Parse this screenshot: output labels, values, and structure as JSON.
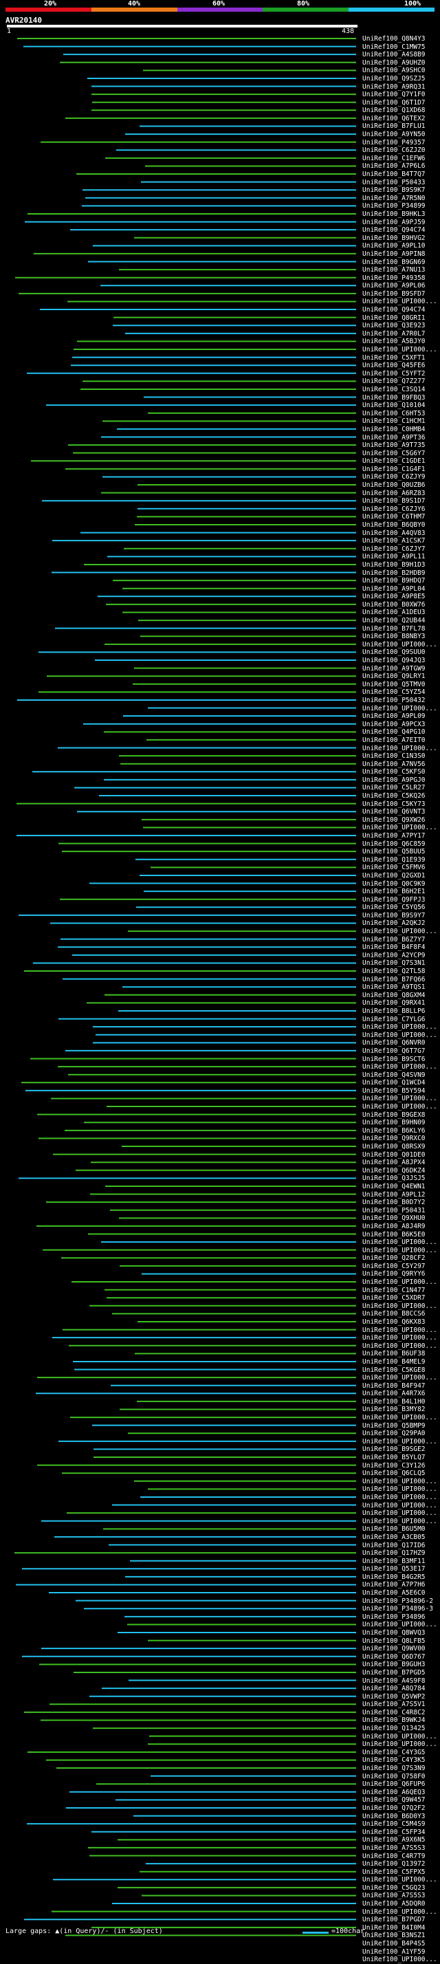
{
  "identity_scale": {
    "labels": [
      "20%",
      "40%",
      "60%",
      "80%",
      "100%"
    ],
    "colors": [
      "#e0101a",
      "#ee7a18",
      "#8a2bd0",
      "#1a9e24",
      "#22c0ee"
    ]
  },
  "query": {
    "name": "AVR20140",
    "start": "1",
    "end": "438",
    "length": 438
  },
  "colors": {
    "cyan": "#22c0ee",
    "green": "#3fbf22"
  },
  "hits": [
    "UniRef100_Q8N4Y3",
    "UniRef100_C1MW75",
    "UniRef100_A4S8B9",
    "UniRef100_A9UHZ0",
    "UniRef100_A9SHC0",
    "UniRef100_Q9SZJ5",
    "UniRef100_A9RQ31",
    "UniRef100_Q7Y1F0",
    "UniRef100_Q6T1D7",
    "UniRef100_Q1XD68",
    "UniRef100_Q6TEX2",
    "UniRef100_B7FLU1",
    "UniRef100_A9YN50",
    "UniRef100_P49357",
    "UniRef100_C6ZJZ0",
    "UniRef100_C1EFW6",
    "UniRef100_A7P6L6",
    "UniRef100_B4T7Q7",
    "UniRef100_P50433",
    "UniRef100_B9S9K7",
    "UniRef100_A7R5N0",
    "UniRef100_P34899",
    "UniRef100_B9HKL3",
    "UniRef100_A9PJ59",
    "UniRef100_Q94C74",
    "UniRef100_B9HVG2",
    "UniRef100_A9PL10",
    "UniRef100_A9PIN8",
    "UniRef100_B9GN69",
    "UniRef100_A7NU13",
    "UniRef100_P49358",
    "UniRef100_A9PL06",
    "UniRef100_B9SFD7",
    "UniRef100_UPI000...",
    "UniRef100_Q94C74",
    "UniRef100_Q8GRI1",
    "UniRef100_Q3E923",
    "UniRef100_A7R0L7",
    "UniRef100_A5BJY0",
    "UniRef100_UPI000...",
    "UniRef100_C5XFT1",
    "UniRef100_Q45FE6",
    "UniRef100_C5YFT2",
    "UniRef100_Q7Z277",
    "UniRef100_C3SQ14",
    "UniRef100_B9FBQ3",
    "UniRef100_Q10104",
    "UniRef100_C6HT53",
    "UniRef100_C1HCM1",
    "UniRef100_C0HMB4",
    "UniRef100_A9PT36",
    "UniRef100_A9T735",
    "UniRef100_C5G6Y7",
    "UniRef100_C1GDE1",
    "UniRef100_C1G4F1",
    "UniRef100_C6ZJY9",
    "UniRef100_Q0UZB6",
    "UniRef100_A6RZ83",
    "UniRef100_B9S1D7",
    "UniRef100_C6ZJY6",
    "UniRef100_C6THM7",
    "UniRef100_B6QBY0",
    "UniRef100_A4QV83",
    "UniRef100_A1CSK7",
    "UniRef100_C6ZJY7",
    "UniRef100_A9PL11",
    "UniRef100_B9H1D3",
    "UniRef100_B2HDB9",
    "UniRef100_B9HDQ7",
    "UniRef100_A9PL04",
    "UniRef100_A9P8E5",
    "UniRef100_B0XW76",
    "UniRef100_A1DEU3",
    "UniRef100_Q2UB44",
    "UniRef100_B7FL78",
    "UniRef100_B8NBY3",
    "UniRef100_UPI000...",
    "UniRef100_Q9SUU0",
    "UniRef100_Q94JQ3",
    "UniRef100_A9TGW9",
    "UniRef100_Q9LRY1",
    "UniRef100_Q5TMV0",
    "UniRef100_C5YZ54",
    "UniRef100_P50432",
    "UniRef100_UPI000...",
    "UniRef100_A9PL09",
    "UniRef100_A9PCX3",
    "UniRef100_Q4PG10",
    "UniRef100_A7EIT0",
    "UniRef100_UPI000...",
    "UniRef100_C1N3S0",
    "UniRef100_A7NV56",
    "UniRef100_C5KFS0",
    "UniRef100_A9PGJ0",
    "UniRef100_C5LR27",
    "UniRef100_C5KQ26",
    "UniRef100_C5KY73",
    "UniRef100_Q6VNT3",
    "UniRef100_Q9XW26",
    "UniRef100_UPI000...",
    "UniRef100_A7PY17",
    "UniRef100_Q6C859",
    "UniRef100_Q5BUU5",
    "UniRef100_Q1E939",
    "UniRef100_C5FMV6",
    "UniRef100_Q2GXD1",
    "UniRef100_Q0C9K9",
    "UniRef100_B6H2E1",
    "UniRef100_Q9FPJ3",
    "UniRef100_C5YQ56",
    "UniRef100_B9S9Y7",
    "UniRef100_A2QKJ2",
    "UniRef100_UPI000...",
    "UniRef100_B6Z7Y7",
    "UniRef100_B4F8F4",
    "UniRef100_A2YCP9",
    "UniRef100_Q7S3N1",
    "UniRef100_Q2TL58",
    "UniRef100_B7FQ66",
    "UniRef100_A9TQS1",
    "UniRef100_Q8GXM4",
    "UniRef100_Q9RX41",
    "UniRef100_B8LLP6",
    "UniRef100_C7YLG6",
    "UniRef100_UPI000...",
    "UniRef100_UPI000...",
    "UniRef100_Q6NVR0",
    "UniRef100_Q6T7G7",
    "UniRef100_B9SCT6",
    "UniRef100_UPI000...",
    "UniRef100_Q4SVN9",
    "UniRef100_Q1WCD4",
    "UniRef100_B5Y594",
    "UniRef100_UPI000...",
    "UniRef100_UPI000...",
    "UniRef100_B9GEX8",
    "UniRef100_B9HN09",
    "UniRef100_B6KLY6",
    "UniRef100_Q9RXC0",
    "UniRef100_Q8RSX9",
    "UniRef100_Q01DE0",
    "UniRef100_A8JPX4",
    "UniRef100_Q6DKZ4",
    "UniRef100_Q3JSJ5",
    "UniRef100_Q4EWN1",
    "UniRef100_A9PL12",
    "UniRef100_B0D7Y2",
    "UniRef100_P50431",
    "UniRef100_Q9XHU0",
    "UniRef100_A8J4R9",
    "UniRef100_B6K5E0",
    "UniRef100_UPI000...",
    "UniRef100_UPI000...",
    "UniRef100_Q28CF2",
    "UniRef100_C5Y297",
    "UniRef100_Q9RYY6",
    "UniRef100_UPI000...",
    "UniRef100_C1N477",
    "UniRef100_C5XDR7",
    "UniRef100_UPI000...",
    "UniRef100_B8CCS6",
    "UniRef100_Q6KX83",
    "UniRef100_UPI000...",
    "UniRef100_UPI000...",
    "UniRef100_UPI000...",
    "UniRef100_B6UF38",
    "UniRef100_B4MEL9",
    "UniRef100_C5KGE8",
    "UniRef100_UPI000...",
    "UniRef100_B4F947",
    "UniRef100_A4R7X6",
    "UniRef100_B4L1H0",
    "UniRef100_B3MY82",
    "UniRef100_UPI000...",
    "UniRef100_Q5BMP9",
    "UniRef100_Q29PA0",
    "UniRef100_UPI000...",
    "UniRef100_B9SGE2",
    "UniRef100_B5YLQ7",
    "UniRef100_C3Y126",
    "UniRef100_Q6CLQ5",
    "UniRef100_UPI000...",
    "UniRef100_UPI000...",
    "UniRef100_UPI000...",
    "UniRef100_UPI000...",
    "UniRef100_UPI000...",
    "UniRef100_UPI000...",
    "UniRef100_B6U5M0",
    "UniRef100_A3CB05",
    "UniRef100_Q17ID6",
    "UniRef100_Q17HZ9",
    "UniRef100_B3MF11",
    "UniRef100_Q53E17",
    "UniRef100_B4G2R5",
    "UniRef100_A7P7H6",
    "UniRef100_A5E6C0",
    "UniRef100_P34896-2",
    "UniRef100_P34896-3",
    "UniRef100_P34896",
    "UniRef100_UPI000...",
    "UniRef100_Q8WVQ3",
    "UniRef100_Q8LFB5",
    "UniRef100_Q9WV00",
    "UniRef100_Q6D767",
    "UniRef100_B9GUH3",
    "UniRef100_B7PGD5",
    "UniRef100_A4S9F8",
    "UniRef100_A8Q784",
    "UniRef100_Q5VWP2",
    "UniRef100_A7S5V1",
    "UniRef100_C4R8C2",
    "UniRef100_B9WKJ4",
    "UniRef100_Q13425",
    "UniRef100_UPI000...",
    "UniRef100_UPI000...",
    "UniRef100_C4Y3G5",
    "UniRef100_C4Y3K5",
    "UniRef100_Q7S3N9",
    "UniRef100_Q758F0",
    "UniRef100_Q6FUP6",
    "UniRef100_A6QEQ3",
    "UniRef100_Q9W457",
    "UniRef100_Q7Q2F2",
    "UniRef100_B6D0Y3",
    "UniRef100_C5M4S9",
    "UniRef100_C5FP34",
    "UniRef100_A9X6N5",
    "UniRef100_A7S5S3",
    "UniRef100_C4R7T9",
    "UniRef100_Q13972",
    "UniRef100_C5FPX5",
    "UniRef100_UPI000...",
    "UniRef100_C5GQ23",
    "UniRef100_A7S5S3",
    "UniRef100_A5DQR0",
    "UniRef100_UPI000...",
    "UniRef100_B7PGD7",
    "UniRef100_B4I0M4",
    "UniRef100_B3NSZ1",
    "UniRef100_B4P4S5",
    "UniRef100_A1YF59",
    "UniRef100_UPI000..."
  ],
  "legend": {
    "left": "Large gaps:  ▲(in Query)/- (in Subject)",
    "right": "=100char."
  }
}
